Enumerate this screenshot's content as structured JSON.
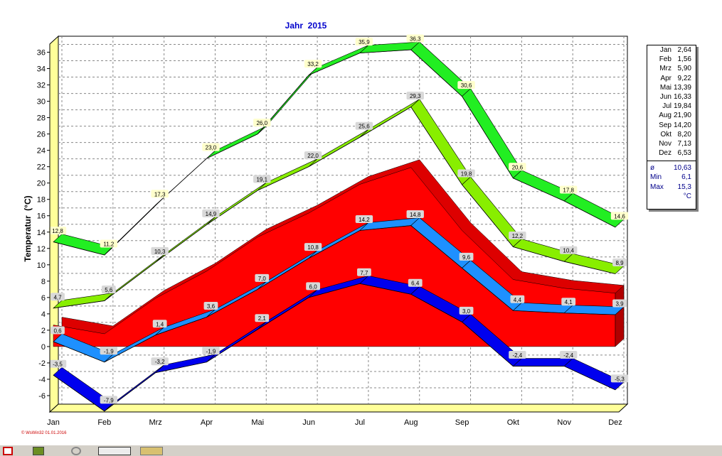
{
  "chart_data": {
    "type": "area",
    "title": "Jahr  2015",
    "xlabel": "",
    "ylabel": "Temperatur  (°C)",
    "categories": [
      "Jan",
      "Feb",
      "Mrz",
      "Apr",
      "Mai",
      "Jun",
      "Jul",
      "Aug",
      "Sep",
      "Okt",
      "Nov",
      "Dez"
    ],
    "ylim": [
      -8,
      37
    ],
    "yticks": [
      -6,
      -4,
      -2,
      0,
      2,
      4,
      6,
      8,
      10,
      12,
      14,
      16,
      18,
      20,
      22,
      24,
      26,
      28,
      30,
      32,
      34,
      36
    ],
    "grid": true,
    "series": [
      {
        "role": "red_area",
        "color": "#ff0000",
        "values": [
          2.64,
          1.56,
          5.9,
          9.22,
          13.39,
          16.33,
          19.84,
          21.9,
          14.2,
          8.2,
          7.13,
          6.53
        ]
      },
      {
        "role": "abs_max",
        "color": "#22ee22",
        "values": [
          12.8,
          11.2,
          17.3,
          23.0,
          26.0,
          33.2,
          35.9,
          36.3,
          30.6,
          20.6,
          17.8,
          14.6
        ],
        "labels": [
          "12,8",
          "11,2",
          "17,3",
          "23,0",
          "26,0",
          "33,2",
          "35,9",
          "36,3",
          "30,6",
          "20,6",
          "17,8",
          "14,6"
        ]
      },
      {
        "role": "mean_max",
        "color": "#88ee00",
        "values": [
          4.7,
          5.6,
          10.3,
          14.9,
          19.1,
          22.0,
          25.6,
          29.3,
          19.8,
          12.2,
          10.4,
          8.9
        ],
        "labels": [
          "4,7",
          "5,6",
          "10,3",
          "14,9",
          "19,1",
          "22,0",
          "25,6",
          "29,3",
          "19,8",
          "12,2",
          "10,4",
          "8,9"
        ]
      },
      {
        "role": "mean_min",
        "color": "#1e90ff",
        "values": [
          0.6,
          -1.9,
          1.4,
          3.6,
          7.0,
          10.8,
          14.2,
          14.8,
          9.6,
          4.4,
          4.1,
          3.9
        ],
        "labels": [
          "0,6",
          "-1,9",
          "1,4",
          "3,6",
          "7,0",
          "10,8",
          "14,2",
          "14,8",
          "9,6",
          "4,4",
          "4,1",
          "3,9"
        ]
      },
      {
        "role": "abs_min",
        "color": "#0000ee",
        "values": [
          -3.5,
          -7.9,
          -3.2,
          -1.9,
          2.1,
          6.0,
          7.7,
          6.4,
          3.0,
          -2.4,
          -2.4,
          -5.3
        ],
        "labels": [
          "-3,5",
          "-7,9",
          "-3,2",
          "-1,9",
          "2,1",
          "6,0",
          "7,7",
          "6,4",
          "3,0",
          "-2,4",
          "-2,4",
          "-5,3"
        ]
      }
    ]
  },
  "legend": {
    "months": [
      {
        "m": "Jan",
        "v": "2,64"
      },
      {
        "m": "Feb",
        "v": "1,56"
      },
      {
        "m": "Mrz",
        "v": "5,90"
      },
      {
        "m": "Apr",
        "v": "9,22"
      },
      {
        "m": "Mai",
        "v": "13,39"
      },
      {
        "m": "Jun",
        "v": "16,33"
      },
      {
        "m": "Jul",
        "v": "19,84"
      },
      {
        "m": "Aug",
        "v": "21,90"
      },
      {
        "m": "Sep",
        "v": "14,20"
      },
      {
        "m": "Okt",
        "v": "8,20"
      },
      {
        "m": "Nov",
        "v": "7,13"
      },
      {
        "m": "Dez",
        "v": "6,53"
      }
    ],
    "avg_label": "ø",
    "avg_value": "10,63",
    "min_label": "Min",
    "min_value": "6,1",
    "max_label": "Max",
    "max_value": "15,3",
    "unit": "°C"
  },
  "footer": "© WsWin32  01.01.2016",
  "taskbar": {
    "icons": [
      "window-icon",
      "gear-icon",
      "weather-icon",
      "folder-icon"
    ]
  }
}
